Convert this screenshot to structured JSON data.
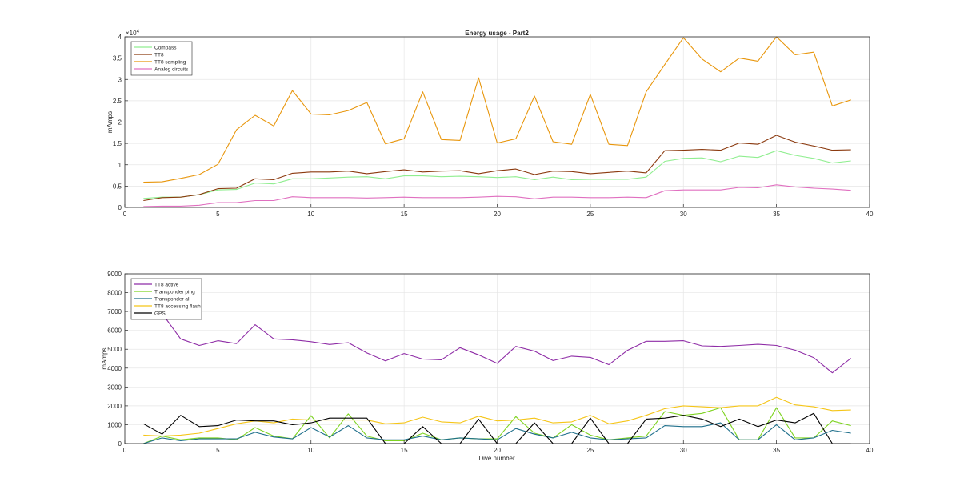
{
  "chart_data": [
    {
      "type": "line",
      "title": "Energy usage - Part2",
      "xlabel": "",
      "ylabel": "mAmps",
      "y_exponent_label": "×10",
      "y_exponent": "4",
      "xlim": [
        0,
        40
      ],
      "ylim": [
        0,
        40000
      ],
      "grid": true,
      "legend_position": "top-left",
      "x_ticks": [
        "0",
        "5",
        "10",
        "15",
        "20",
        "25",
        "30",
        "35",
        "40"
      ],
      "y_ticks": [
        "0",
        "0.5",
        "1",
        "1.5",
        "2",
        "2.5",
        "3",
        "3.5",
        "4"
      ],
      "y_tick_values": [
        0,
        5000,
        10000,
        15000,
        20000,
        25000,
        30000,
        35000,
        40000
      ],
      "x": [
        1,
        2,
        3,
        4,
        5,
        6,
        7,
        8,
        9,
        10,
        11,
        12,
        13,
        14,
        15,
        16,
        17,
        18,
        19,
        20,
        21,
        22,
        23,
        24,
        25,
        26,
        27,
        28,
        29,
        30,
        31,
        32,
        33,
        34,
        35,
        36,
        37,
        38,
        39
      ],
      "series": [
        {
          "name": "Compass",
          "color": "#90ee90",
          "values": [
            2100,
            2400,
            2400,
            3000,
            4100,
            4200,
            5700,
            5500,
            6700,
            6700,
            6900,
            7100,
            7200,
            6700,
            7400,
            7400,
            7200,
            7300,
            7200,
            7000,
            7200,
            6500,
            7100,
            6500,
            6600,
            6600,
            6600,
            7100,
            10800,
            11500,
            11600,
            10700,
            12000,
            11700,
            13300,
            12200,
            11500,
            10400,
            10900
          ]
        },
        {
          "name": "TT8",
          "color": "#8b3a0f",
          "values": [
            1600,
            2300,
            2400,
            3000,
            4400,
            4500,
            6700,
            6500,
            8000,
            8300,
            8300,
            8500,
            7900,
            8400,
            8800,
            8300,
            8500,
            8600,
            7900,
            8600,
            9000,
            7700,
            8500,
            8400,
            7900,
            8200,
            8500,
            8100,
            13300,
            13400,
            13600,
            13400,
            15100,
            14800,
            16900,
            15300,
            14400,
            13400,
            13500
          ]
        },
        {
          "name": "TT8 sampling",
          "color": "#e8960c",
          "values": [
            5900,
            6000,
            6800,
            7700,
            10100,
            18200,
            21600,
            19100,
            27400,
            21900,
            21700,
            22700,
            24600,
            14900,
            16100,
            27100,
            15900,
            15700,
            30400,
            15100,
            16100,
            26100,
            15400,
            14800,
            26500,
            14800,
            14500,
            27100,
            33500,
            39800,
            34800,
            31800,
            35000,
            34300,
            40000,
            35800,
            36400,
            23800,
            25200
          ]
        },
        {
          "name": "Analog circuits",
          "color": "#e070c0",
          "values": [
            200,
            300,
            300,
            500,
            1100,
            1100,
            1600,
            1600,
            2500,
            2300,
            2300,
            2300,
            2200,
            2300,
            2400,
            2300,
            2300,
            2300,
            2400,
            2600,
            2500,
            2000,
            2400,
            2400,
            2300,
            2300,
            2400,
            2300,
            3900,
            4100,
            4100,
            4100,
            4700,
            4600,
            5300,
            4800,
            4500,
            4300,
            4000
          ]
        }
      ]
    },
    {
      "type": "line",
      "title": "",
      "xlabel": "Dive number",
      "ylabel": "mAmps",
      "xlim": [
        0,
        40
      ],
      "ylim": [
        0,
        9000
      ],
      "grid": true,
      "legend_position": "top-left",
      "x_ticks": [
        "0",
        "5",
        "10",
        "15",
        "20",
        "25",
        "30",
        "35",
        "40"
      ],
      "y_ticks": [
        "0",
        "1000",
        "2000",
        "3000",
        "4000",
        "5000",
        "6000",
        "7000",
        "8000",
        "9000"
      ],
      "y_tick_values": [
        0,
        1000,
        2000,
        3000,
        4000,
        5000,
        6000,
        7000,
        8000,
        9000
      ],
      "x": [
        1,
        2,
        3,
        4,
        5,
        6,
        7,
        8,
        9,
        10,
        11,
        12,
        13,
        14,
        15,
        16,
        17,
        18,
        19,
        20,
        21,
        22,
        23,
        24,
        25,
        26,
        27,
        28,
        29,
        30,
        31,
        32,
        33,
        34,
        35,
        36,
        37,
        38,
        39
      ],
      "series": [
        {
          "name": "TT8 active",
          "color": "#8e2ca6",
          "values": [
            7600,
            6900,
            5550,
            5200,
            5450,
            5300,
            6300,
            5550,
            5500,
            5400,
            5250,
            5350,
            4800,
            4380,
            4770,
            4480,
            4440,
            5080,
            4700,
            4250,
            5150,
            4900,
            4400,
            4630,
            4570,
            4180,
            4940,
            5420,
            5420,
            5450,
            5180,
            5150,
            5200,
            5260,
            5200,
            4950,
            4550,
            3750,
            4520
          ]
        },
        {
          "name": "Transponder ping",
          "color": "#7ed321",
          "values": [
            0,
            400,
            200,
            300,
            300,
            200,
            850,
            400,
            250,
            1480,
            300,
            1580,
            400,
            150,
            150,
            550,
            200,
            300,
            250,
            250,
            1430,
            550,
            300,
            1000,
            450,
            200,
            300,
            400,
            1700,
            1500,
            1600,
            1900,
            200,
            200,
            1900,
            300,
            300,
            1200,
            950
          ]
        },
        {
          "name": "Transponder all",
          "color": "#1f6f8b",
          "values": [
            0,
            300,
            150,
            250,
            250,
            250,
            600,
            350,
            250,
            850,
            350,
            950,
            300,
            200,
            200,
            400,
            200,
            300,
            250,
            200,
            800,
            500,
            300,
            600,
            300,
            200,
            250,
            300,
            950,
            900,
            900,
            1100,
            200,
            200,
            1000,
            200,
            300,
            700,
            550
          ]
        },
        {
          "name": "TT8 accessing flash",
          "color": "#f5c518",
          "values": [
            450,
            400,
            450,
            550,
            800,
            1050,
            1200,
            1100,
            1300,
            1250,
            1250,
            1250,
            1250,
            1050,
            1100,
            1400,
            1150,
            1100,
            1450,
            1200,
            1250,
            1350,
            1100,
            1150,
            1500,
            1050,
            1200,
            1500,
            1850,
            2000,
            1950,
            1900,
            2000,
            2000,
            2450,
            2050,
            1950,
            1750,
            1780
          ]
        },
        {
          "name": "GPS",
          "color": "#000000",
          "values": [
            1050,
            500,
            1500,
            900,
            950,
            1250,
            1200,
            1200,
            1000,
            1100,
            1350,
            1350,
            1350,
            0,
            0,
            900,
            0,
            0,
            1300,
            0,
            0,
            1100,
            0,
            0,
            1350,
            0,
            0,
            1300,
            1350,
            1500,
            1300,
            900,
            1300,
            900,
            1250,
            1100,
            1600,
            0,
            0
          ]
        }
      ]
    }
  ]
}
